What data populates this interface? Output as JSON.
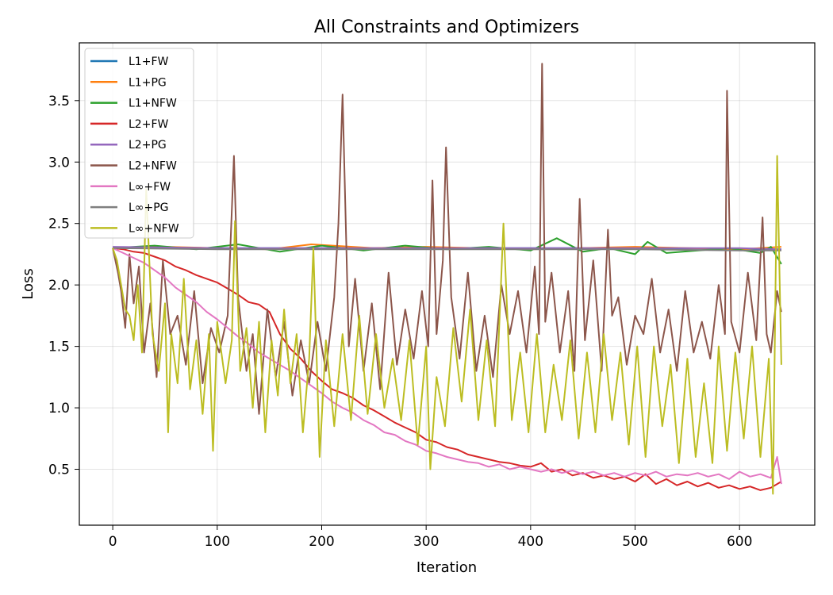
{
  "chart_data": {
    "type": "line",
    "title": "All Constraints and Optimizers",
    "xlabel": "Iteration",
    "ylabel": "Loss",
    "xlim": [
      -32,
      672
    ],
    "ylim": [
      0.045,
      3.97
    ],
    "xticks": [
      0,
      100,
      200,
      300,
      400,
      500,
      600
    ],
    "yticks": [
      0.5,
      1.0,
      1.5,
      2.0,
      2.5,
      3.0,
      3.5
    ],
    "ytick_labels": [
      "0.5",
      "1.0",
      "1.5",
      "2.0",
      "2.5",
      "3.0",
      "3.5"
    ],
    "grid": true,
    "legend_position": "top-left",
    "series": [
      {
        "name": "L1+FW",
        "color": "#1f77b4",
        "x": [
          0,
          100,
          200,
          300,
          400,
          500,
          640
        ],
        "y": [
          2.3,
          2.3,
          2.3,
          2.3,
          2.3,
          2.3,
          2.29
        ]
      },
      {
        "name": "L1+PG",
        "color": "#ff7f0e",
        "x": [
          0,
          50,
          100,
          150,
          190,
          250,
          300,
          350,
          400,
          450,
          500,
          550,
          600,
          640
        ],
        "y": [
          2.3,
          2.31,
          2.3,
          2.29,
          2.33,
          2.3,
          2.31,
          2.3,
          2.29,
          2.3,
          2.31,
          2.3,
          2.29,
          2.31
        ]
      },
      {
        "name": "L1+NFW",
        "color": "#2ca02c",
        "x": [
          0,
          40,
          80,
          120,
          160,
          200,
          240,
          280,
          320,
          360,
          400,
          425,
          450,
          475,
          500,
          512,
          530,
          560,
          590,
          620,
          630,
          640
        ],
        "y": [
          2.3,
          2.32,
          2.29,
          2.33,
          2.27,
          2.32,
          2.28,
          2.32,
          2.29,
          2.31,
          2.28,
          2.38,
          2.27,
          2.3,
          2.25,
          2.35,
          2.26,
          2.28,
          2.3,
          2.26,
          2.31,
          2.17
        ]
      },
      {
        "name": "L2+FW",
        "color": "#d62728",
        "x": [
          0,
          10,
          20,
          30,
          40,
          50,
          60,
          70,
          80,
          90,
          100,
          110,
          120,
          130,
          140,
          150,
          160,
          170,
          180,
          190,
          200,
          210,
          220,
          230,
          240,
          250,
          260,
          270,
          280,
          290,
          300,
          310,
          320,
          330,
          340,
          350,
          360,
          370,
          380,
          390,
          400,
          410,
          420,
          430,
          440,
          450,
          460,
          470,
          480,
          490,
          500,
          510,
          520,
          530,
          540,
          550,
          560,
          570,
          580,
          590,
          600,
          610,
          620,
          630,
          640
        ],
        "y": [
          2.3,
          2.29,
          2.27,
          2.26,
          2.23,
          2.2,
          2.15,
          2.12,
          2.08,
          2.05,
          2.02,
          1.97,
          1.92,
          1.86,
          1.84,
          1.78,
          1.6,
          1.48,
          1.4,
          1.3,
          1.22,
          1.15,
          1.12,
          1.08,
          1.02,
          0.98,
          0.93,
          0.88,
          0.84,
          0.8,
          0.74,
          0.72,
          0.68,
          0.66,
          0.62,
          0.6,
          0.58,
          0.56,
          0.55,
          0.53,
          0.52,
          0.55,
          0.48,
          0.5,
          0.45,
          0.47,
          0.43,
          0.45,
          0.42,
          0.44,
          0.4,
          0.46,
          0.38,
          0.42,
          0.37,
          0.4,
          0.36,
          0.39,
          0.35,
          0.37,
          0.34,
          0.36,
          0.33,
          0.35,
          0.4
        ]
      },
      {
        "name": "L2+PG",
        "color": "#9467bd",
        "x": [
          0,
          100,
          200,
          300,
          400,
          500,
          600,
          640
        ],
        "y": [
          2.31,
          2.3,
          2.3,
          2.3,
          2.3,
          2.3,
          2.3,
          2.29
        ]
      },
      {
        "name": "L2+NFW",
        "color": "#8c564b",
        "x": [
          0,
          5,
          8,
          12,
          16,
          20,
          25,
          30,
          36,
          42,
          48,
          55,
          62,
          70,
          78,
          86,
          94,
          102,
          110,
          116,
          120,
          128,
          134,
          140,
          148,
          156,
          164,
          172,
          180,
          188,
          196,
          204,
          212,
          216,
          220,
          226,
          232,
          240,
          248,
          256,
          264,
          272,
          280,
          288,
          296,
          302,
          306,
          310,
          316,
          319,
          324,
          332,
          340,
          348,
          356,
          364,
          372,
          380,
          388,
          396,
          404,
          408,
          411,
          414,
          420,
          428,
          436,
          442,
          447,
          452,
          460,
          468,
          474,
          478,
          484,
          492,
          500,
          508,
          516,
          524,
          532,
          540,
          548,
          556,
          564,
          572,
          580,
          586,
          588,
          592,
          600,
          608,
          616,
          622,
          626,
          630,
          636,
          640
        ],
        "y": [
          2.3,
          2.1,
          1.95,
          1.65,
          2.25,
          1.85,
          2.15,
          1.45,
          1.85,
          1.25,
          2.2,
          1.6,
          1.75,
          1.35,
          1.95,
          1.2,
          1.65,
          1.45,
          1.75,
          3.05,
          1.9,
          1.3,
          1.6,
          0.95,
          1.8,
          1.25,
          1.7,
          1.1,
          1.55,
          1.2,
          1.7,
          1.3,
          1.9,
          2.5,
          3.55,
          1.5,
          2.05,
          1.3,
          1.85,
          1.15,
          2.1,
          1.35,
          1.8,
          1.4,
          1.95,
          1.5,
          2.85,
          1.6,
          2.2,
          3.12,
          1.9,
          1.4,
          2.1,
          1.3,
          1.75,
          1.25,
          2.0,
          1.6,
          1.95,
          1.45,
          2.15,
          1.6,
          3.8,
          1.7,
          2.1,
          1.45,
          1.95,
          1.3,
          2.7,
          1.55,
          2.2,
          1.3,
          2.45,
          1.75,
          1.9,
          1.35,
          1.75,
          1.6,
          2.05,
          1.45,
          1.8,
          1.3,
          1.95,
          1.45,
          1.7,
          1.4,
          2.0,
          1.6,
          3.58,
          1.7,
          1.45,
          2.1,
          1.55,
          2.55,
          1.6,
          1.45,
          1.95,
          1.78
        ]
      },
      {
        "name": "L∞+FW",
        "color": "#e377c2",
        "x": [
          0,
          10,
          20,
          30,
          40,
          50,
          60,
          70,
          80,
          90,
          100,
          110,
          120,
          130,
          140,
          150,
          160,
          170,
          180,
          190,
          200,
          210,
          220,
          230,
          240,
          250,
          260,
          270,
          280,
          290,
          300,
          310,
          320,
          330,
          340,
          350,
          360,
          370,
          380,
          390,
          400,
          410,
          420,
          430,
          440,
          450,
          460,
          470,
          480,
          490,
          500,
          510,
          520,
          530,
          540,
          550,
          560,
          570,
          580,
          590,
          600,
          610,
          620,
          630,
          636,
          640
        ],
        "y": [
          2.3,
          2.26,
          2.22,
          2.18,
          2.12,
          2.06,
          1.98,
          1.92,
          1.86,
          1.78,
          1.72,
          1.65,
          1.58,
          1.52,
          1.45,
          1.4,
          1.35,
          1.3,
          1.24,
          1.18,
          1.12,
          1.05,
          1.0,
          0.96,
          0.9,
          0.86,
          0.8,
          0.78,
          0.73,
          0.7,
          0.65,
          0.63,
          0.6,
          0.58,
          0.56,
          0.55,
          0.52,
          0.54,
          0.5,
          0.52,
          0.5,
          0.48,
          0.5,
          0.47,
          0.49,
          0.46,
          0.48,
          0.45,
          0.47,
          0.44,
          0.47,
          0.45,
          0.48,
          0.44,
          0.46,
          0.45,
          0.47,
          0.44,
          0.46,
          0.42,
          0.48,
          0.44,
          0.46,
          0.43,
          0.6,
          0.38
        ]
      },
      {
        "name": "L∞+PG",
        "color": "#7f7f7f",
        "x": [
          0,
          100,
          200,
          300,
          400,
          500,
          600,
          640
        ],
        "y": [
          2.3,
          2.29,
          2.29,
          2.29,
          2.29,
          2.29,
          2.28,
          2.28
        ]
      },
      {
        "name": "L∞+NFW",
        "color": "#bcbd22",
        "x": [
          0,
          4,
          8,
          12,
          16,
          20,
          24,
          28,
          32,
          38,
          44,
          50,
          53,
          56,
          62,
          68,
          74,
          80,
          86,
          92,
          96,
          100,
          108,
          114,
          117,
          122,
          128,
          134,
          140,
          146,
          152,
          158,
          164,
          170,
          176,
          182,
          188,
          192,
          198,
          204,
          212,
          220,
          228,
          236,
          244,
          252,
          260,
          268,
          276,
          284,
          292,
          300,
          304,
          310,
          318,
          326,
          334,
          342,
          350,
          358,
          366,
          374,
          382,
          390,
          398,
          406,
          414,
          422,
          430,
          438,
          446,
          454,
          462,
          470,
          478,
          486,
          494,
          502,
          510,
          518,
          526,
          534,
          542,
          550,
          558,
          566,
          574,
          580,
          588,
          596,
          604,
          612,
          620,
          628,
          632,
          636,
          640
        ],
        "y": [
          2.3,
          2.2,
          2.0,
          1.8,
          1.75,
          1.55,
          2.0,
          1.45,
          2.78,
          1.6,
          1.3,
          1.85,
          0.8,
          1.6,
          1.2,
          2.05,
          1.15,
          1.55,
          0.95,
          1.6,
          0.65,
          1.7,
          1.2,
          1.55,
          2.52,
          1.3,
          1.65,
          1.0,
          1.7,
          0.8,
          1.55,
          1.1,
          1.8,
          1.2,
          1.6,
          0.8,
          1.4,
          2.3,
          0.6,
          1.55,
          0.85,
          1.6,
          0.9,
          1.75,
          0.95,
          1.6,
          1.0,
          1.4,
          0.9,
          1.55,
          0.7,
          1.5,
          0.5,
          1.25,
          0.85,
          1.65,
          1.05,
          1.8,
          0.9,
          1.55,
          0.85,
          2.5,
          0.9,
          1.45,
          0.8,
          1.6,
          0.8,
          1.35,
          0.9,
          1.55,
          0.75,
          1.45,
          0.8,
          1.6,
          0.9,
          1.45,
          0.7,
          1.5,
          0.6,
          1.5,
          0.85,
          1.35,
          0.55,
          1.4,
          0.6,
          1.2,
          0.55,
          1.5,
          0.65,
          1.45,
          0.75,
          1.5,
          0.6,
          1.4,
          0.3,
          3.05,
          1.35
        ]
      }
    ]
  }
}
